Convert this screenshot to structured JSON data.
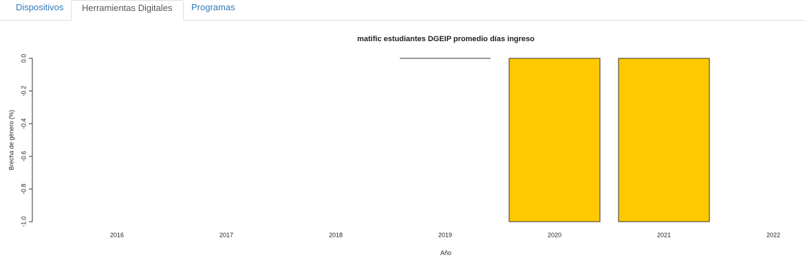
{
  "tabs": [
    "Dispositivos",
    "Herramientas Digitales",
    "Programas"
  ],
  "chart_data": {
    "type": "bar",
    "title": "matific estudiantes DGEIP promedio días ingreso",
    "x_label": "Año",
    "y_label": "Brecha de género (%)",
    "categories": [
      "2016",
      "2017",
      "2018",
      "2019",
      "2020",
      "2021",
      "2022"
    ],
    "values": [
      null,
      null,
      null,
      0,
      -1,
      -1,
      null
    ],
    "color": "#ffc800",
    "ylim": [
      -1,
      0
    ],
    "yticks": [
      {
        "value": 0,
        "label": "0.0"
      },
      -0.2,
      -0.4,
      -0.6,
      -0.8,
      {
        "value": -1,
        "label": "-1.0"
      }
    ]
  }
}
